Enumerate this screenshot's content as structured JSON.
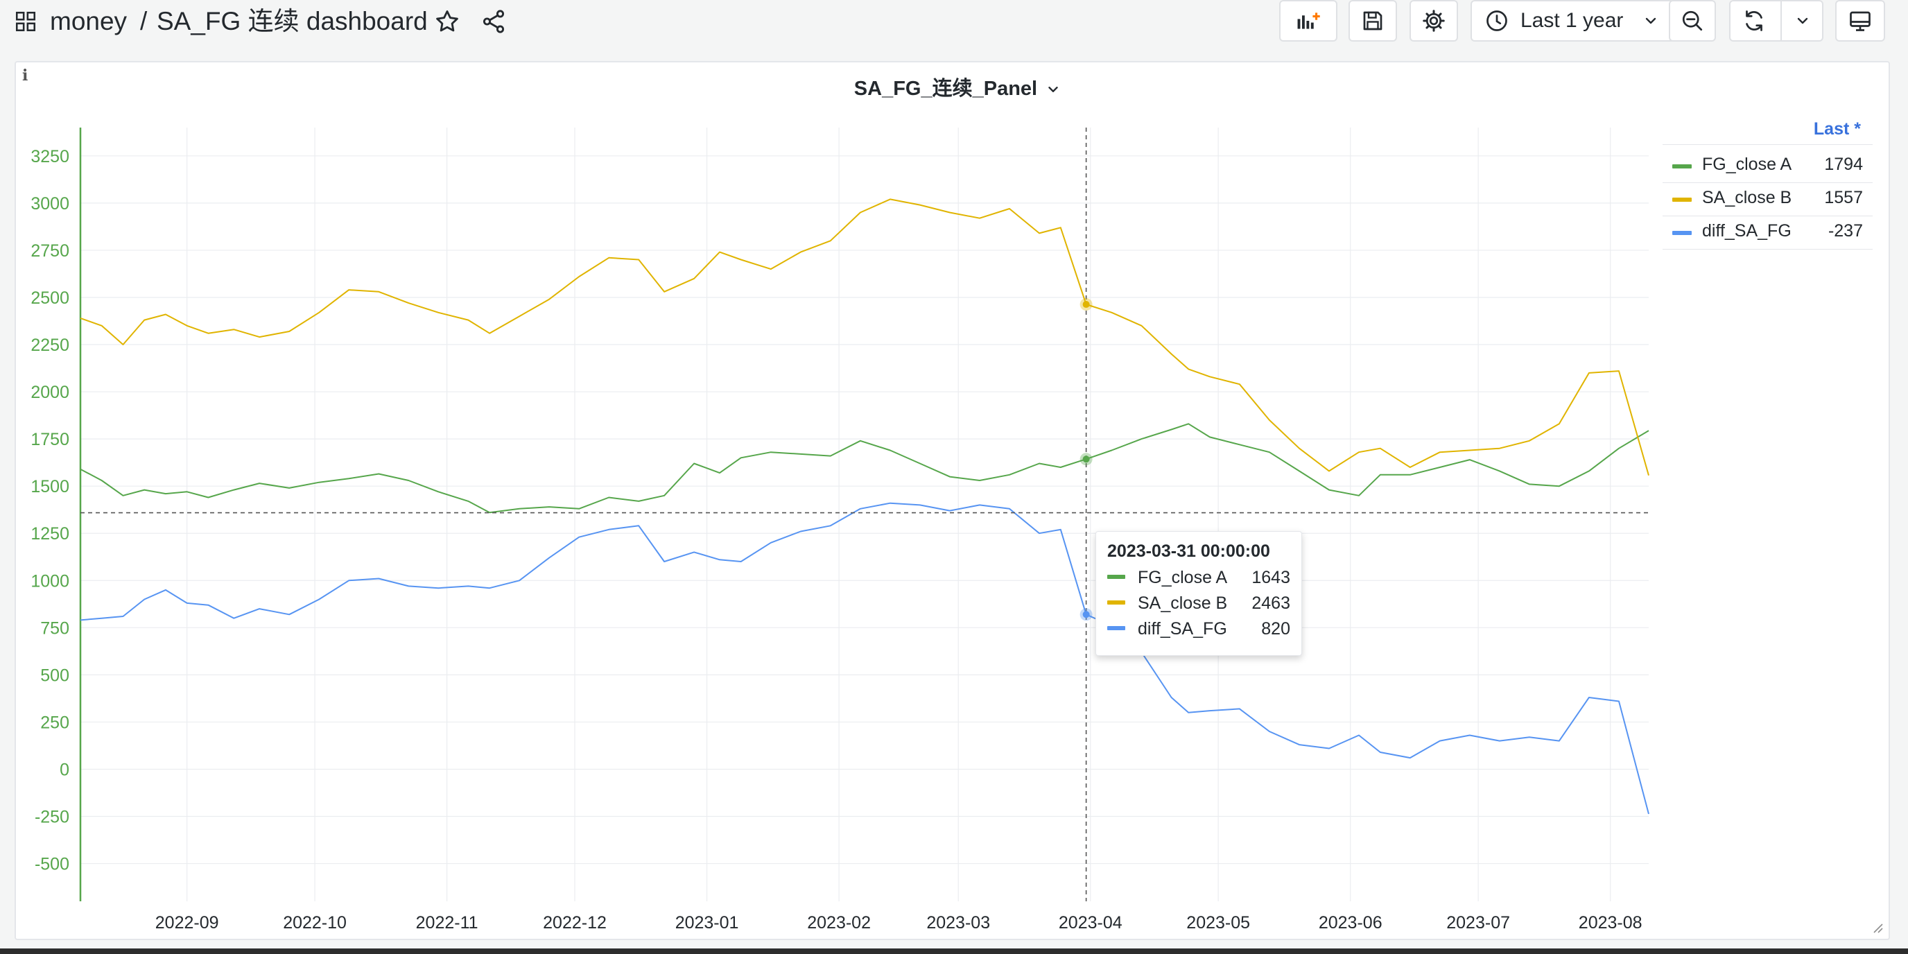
{
  "header": {
    "apps_icon": "apps-grid-icon",
    "breadcrumb_folder": "money",
    "breadcrumb_separator": "/",
    "dashboard_title": "SA_FG 连续 dashboard",
    "star_icon": "star-icon",
    "share_icon": "share-icon"
  },
  "toolbar": {
    "add_panel_icon": "add-panel-icon",
    "save_icon": "save-icon",
    "settings_icon": "gear-icon",
    "time_range_label": "Last 1 year",
    "zoom_out_icon": "zoom-out-icon",
    "refresh_icon": "refresh-icon",
    "refresh_dropdown_icon": "chevron-down-icon",
    "tv_mode_icon": "monitor-icon"
  },
  "panel": {
    "title": "SA_FG_连续_Panel",
    "info_icon": "info-icon",
    "legend_header": "Last *",
    "legend": [
      {
        "name": "FG_close A",
        "value": "1794",
        "color": "#56a64b"
      },
      {
        "name": "SA_close B",
        "value": "1557",
        "color": "#e0b400"
      },
      {
        "name": "diff_SA_FG",
        "value": "-237",
        "color": "#5794f2"
      }
    ]
  },
  "tooltip": {
    "time": "2023-03-31 00:00:00",
    "rows": [
      {
        "name": "FG_close A",
        "value": "1643",
        "color": "#56a64b"
      },
      {
        "name": "SA_close B",
        "value": "2463",
        "color": "#e0b400"
      },
      {
        "name": "diff_SA_FG",
        "value": "820",
        "color": "#5794f2"
      }
    ]
  },
  "chart_data": {
    "type": "line",
    "x_ticks": [
      "2022-09",
      "2022-10",
      "2022-11",
      "2022-12",
      "2023-01",
      "2023-02",
      "2023-03",
      "2023-04",
      "2023-05",
      "2023-06",
      "2023-07",
      "2023-08"
    ],
    "y_ticks": [
      3250,
      3000,
      2750,
      2500,
      2250,
      2000,
      1750,
      1500,
      1250,
      1000,
      750,
      500,
      250,
      0,
      -250,
      -500
    ],
    "ylim": [
      -700,
      3400
    ],
    "xlim": [
      "2022-08-07",
      "2023-08-10"
    ],
    "crosshair": {
      "x": "2023-03-31",
      "y": 1359
    },
    "grid": true,
    "legend_position": "right",
    "series": [
      {
        "name": "FG_close A",
        "color": "#56a64b",
        "points": [
          [
            "2022-08-07",
            1590
          ],
          [
            "2022-08-12",
            1530
          ],
          [
            "2022-08-17",
            1450
          ],
          [
            "2022-08-22",
            1480
          ],
          [
            "2022-08-27",
            1460
          ],
          [
            "2022-09-01",
            1470
          ],
          [
            "2022-09-06",
            1440
          ],
          [
            "2022-09-12",
            1480
          ],
          [
            "2022-09-18",
            1515
          ],
          [
            "2022-09-25",
            1490
          ],
          [
            "2022-10-02",
            1520
          ],
          [
            "2022-10-09",
            1540
          ],
          [
            "2022-10-16",
            1565
          ],
          [
            "2022-10-23",
            1530
          ],
          [
            "2022-10-30",
            1470
          ],
          [
            "2022-11-06",
            1420
          ],
          [
            "2022-11-11",
            1360
          ],
          [
            "2022-11-18",
            1380
          ],
          [
            "2022-11-25",
            1390
          ],
          [
            "2022-12-02",
            1380
          ],
          [
            "2022-12-09",
            1440
          ],
          [
            "2022-12-16",
            1420
          ],
          [
            "2022-12-22",
            1450
          ],
          [
            "2022-12-29",
            1620
          ],
          [
            "2023-01-04",
            1570
          ],
          [
            "2023-01-09",
            1650
          ],
          [
            "2023-01-16",
            1680
          ],
          [
            "2023-01-23",
            1670
          ],
          [
            "2023-01-30",
            1660
          ],
          [
            "2023-02-06",
            1740
          ],
          [
            "2023-02-13",
            1690
          ],
          [
            "2023-02-20",
            1620
          ],
          [
            "2023-02-27",
            1550
          ],
          [
            "2023-03-06",
            1530
          ],
          [
            "2023-03-13",
            1560
          ],
          [
            "2023-03-20",
            1620
          ],
          [
            "2023-03-25",
            1600
          ],
          [
            "2023-03-31",
            1643
          ],
          [
            "2023-04-06",
            1690
          ],
          [
            "2023-04-13",
            1750
          ],
          [
            "2023-04-20",
            1800
          ],
          [
            "2023-04-24",
            1830
          ],
          [
            "2023-04-29",
            1760
          ],
          [
            "2023-05-06",
            1720
          ],
          [
            "2023-05-13",
            1680
          ],
          [
            "2023-05-20",
            1580
          ],
          [
            "2023-05-27",
            1480
          ],
          [
            "2023-06-03",
            1450
          ],
          [
            "2023-06-08",
            1560
          ],
          [
            "2023-06-15",
            1560
          ],
          [
            "2023-06-22",
            1600
          ],
          [
            "2023-06-29",
            1640
          ],
          [
            "2023-07-06",
            1580
          ],
          [
            "2023-07-13",
            1510
          ],
          [
            "2023-07-20",
            1500
          ],
          [
            "2023-07-27",
            1580
          ],
          [
            "2023-08-03",
            1700
          ],
          [
            "2023-08-10",
            1794
          ]
        ]
      },
      {
        "name": "SA_close B",
        "color": "#e0b400",
        "points": [
          [
            "2022-08-07",
            2390
          ],
          [
            "2022-08-12",
            2350
          ],
          [
            "2022-08-17",
            2250
          ],
          [
            "2022-08-22",
            2380
          ],
          [
            "2022-08-27",
            2410
          ],
          [
            "2022-09-01",
            2350
          ],
          [
            "2022-09-06",
            2310
          ],
          [
            "2022-09-12",
            2330
          ],
          [
            "2022-09-18",
            2290
          ],
          [
            "2022-09-25",
            2320
          ],
          [
            "2022-10-02",
            2420
          ],
          [
            "2022-10-09",
            2540
          ],
          [
            "2022-10-16",
            2530
          ],
          [
            "2022-10-23",
            2470
          ],
          [
            "2022-10-30",
            2420
          ],
          [
            "2022-11-06",
            2380
          ],
          [
            "2022-11-11",
            2310
          ],
          [
            "2022-11-18",
            2400
          ],
          [
            "2022-11-25",
            2490
          ],
          [
            "2022-12-02",
            2610
          ],
          [
            "2022-12-09",
            2710
          ],
          [
            "2022-12-16",
            2700
          ],
          [
            "2022-12-22",
            2530
          ],
          [
            "2022-12-29",
            2600
          ],
          [
            "2023-01-04",
            2740
          ],
          [
            "2023-01-09",
            2700
          ],
          [
            "2023-01-16",
            2650
          ],
          [
            "2023-01-23",
            2740
          ],
          [
            "2023-01-30",
            2800
          ],
          [
            "2023-02-06",
            2950
          ],
          [
            "2023-02-13",
            3020
          ],
          [
            "2023-02-20",
            2990
          ],
          [
            "2023-02-27",
            2950
          ],
          [
            "2023-03-06",
            2920
          ],
          [
            "2023-03-13",
            2970
          ],
          [
            "2023-03-20",
            2840
          ],
          [
            "2023-03-25",
            2870
          ],
          [
            "2023-03-31",
            2463
          ],
          [
            "2023-04-06",
            2420
          ],
          [
            "2023-04-13",
            2350
          ],
          [
            "2023-04-20",
            2200
          ],
          [
            "2023-04-24",
            2120
          ],
          [
            "2023-04-29",
            2080
          ],
          [
            "2023-05-06",
            2040
          ],
          [
            "2023-05-13",
            1850
          ],
          [
            "2023-05-20",
            1700
          ],
          [
            "2023-05-27",
            1580
          ],
          [
            "2023-06-03",
            1680
          ],
          [
            "2023-06-08",
            1700
          ],
          [
            "2023-06-15",
            1600
          ],
          [
            "2023-06-22",
            1680
          ],
          [
            "2023-06-29",
            1690
          ],
          [
            "2023-07-06",
            1700
          ],
          [
            "2023-07-13",
            1740
          ],
          [
            "2023-07-20",
            1830
          ],
          [
            "2023-07-27",
            2100
          ],
          [
            "2023-08-03",
            2110
          ],
          [
            "2023-08-10",
            1557
          ]
        ]
      },
      {
        "name": "diff_SA_FG",
        "color": "#5794f2",
        "points": [
          [
            "2022-08-07",
            790
          ],
          [
            "2022-08-12",
            800
          ],
          [
            "2022-08-17",
            810
          ],
          [
            "2022-08-22",
            900
          ],
          [
            "2022-08-27",
            950
          ],
          [
            "2022-09-01",
            880
          ],
          [
            "2022-09-06",
            870
          ],
          [
            "2022-09-12",
            800
          ],
          [
            "2022-09-18",
            850
          ],
          [
            "2022-09-25",
            820
          ],
          [
            "2022-10-02",
            900
          ],
          [
            "2022-10-09",
            1000
          ],
          [
            "2022-10-16",
            1010
          ],
          [
            "2022-10-23",
            970
          ],
          [
            "2022-10-30",
            960
          ],
          [
            "2022-11-06",
            970
          ],
          [
            "2022-11-11",
            960
          ],
          [
            "2022-11-18",
            1000
          ],
          [
            "2022-11-25",
            1120
          ],
          [
            "2022-12-02",
            1230
          ],
          [
            "2022-12-09",
            1270
          ],
          [
            "2022-12-16",
            1290
          ],
          [
            "2022-12-22",
            1100
          ],
          [
            "2022-12-29",
            1150
          ],
          [
            "2023-01-04",
            1110
          ],
          [
            "2023-01-09",
            1100
          ],
          [
            "2023-01-16",
            1200
          ],
          [
            "2023-01-23",
            1260
          ],
          [
            "2023-01-30",
            1290
          ],
          [
            "2023-02-06",
            1380
          ],
          [
            "2023-02-13",
            1410
          ],
          [
            "2023-02-20",
            1400
          ],
          [
            "2023-02-27",
            1370
          ],
          [
            "2023-03-06",
            1400
          ],
          [
            "2023-03-13",
            1380
          ],
          [
            "2023-03-20",
            1250
          ],
          [
            "2023-03-25",
            1270
          ],
          [
            "2023-03-31",
            820
          ],
          [
            "2023-04-06",
            760
          ],
          [
            "2023-04-13",
            620
          ],
          [
            "2023-04-20",
            380
          ],
          [
            "2023-04-24",
            300
          ],
          [
            "2023-04-29",
            310
          ],
          [
            "2023-05-06",
            320
          ],
          [
            "2023-05-13",
            200
          ],
          [
            "2023-05-20",
            130
          ],
          [
            "2023-05-27",
            110
          ],
          [
            "2023-06-03",
            180
          ],
          [
            "2023-06-08",
            90
          ],
          [
            "2023-06-15",
            60
          ],
          [
            "2023-06-22",
            150
          ],
          [
            "2023-06-29",
            180
          ],
          [
            "2023-07-06",
            150
          ],
          [
            "2023-07-13",
            170
          ],
          [
            "2023-07-20",
            150
          ],
          [
            "2023-07-27",
            380
          ],
          [
            "2023-08-03",
            360
          ],
          [
            "2023-08-10",
            -237
          ]
        ]
      }
    ]
  }
}
